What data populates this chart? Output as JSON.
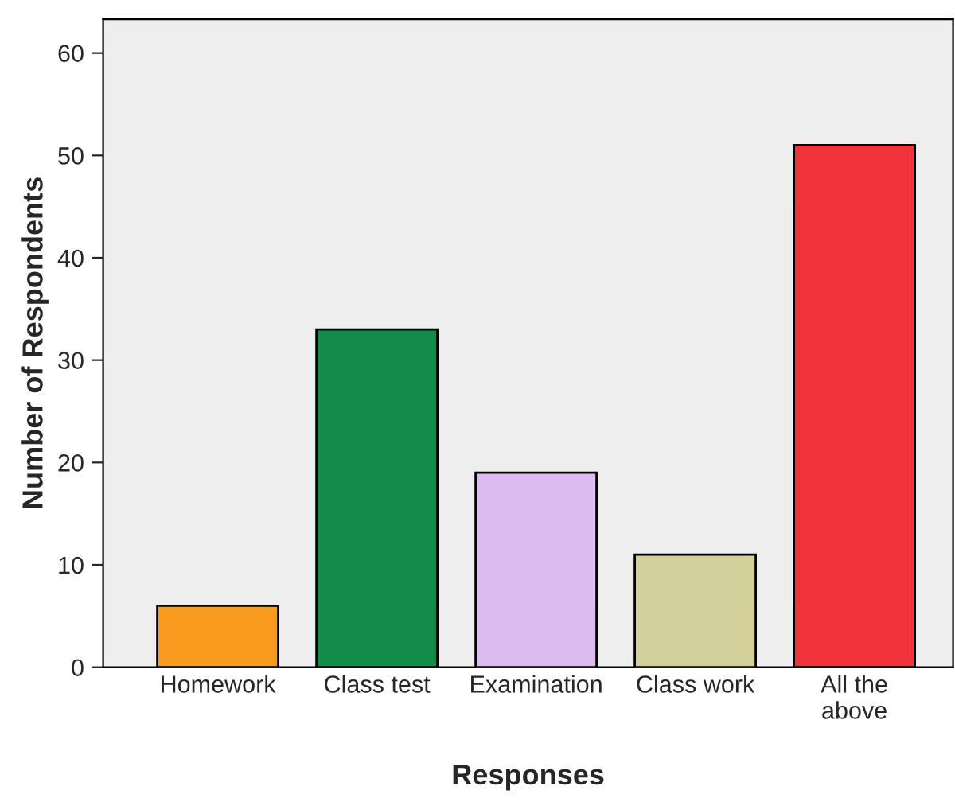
{
  "chart_data": {
    "type": "bar",
    "xlabel": "Responses",
    "ylabel": "Number of Respondents",
    "categories": [
      "Homework",
      "Class test",
      "Examination",
      "Class work",
      "All the\nabove"
    ],
    "values": [
      6,
      33,
      19,
      11,
      51
    ],
    "colors": [
      "#f79a1e",
      "#138c4a",
      "#dcbcf0",
      "#d4d09c",
      "#f0323a"
    ],
    "ylim": [
      0,
      63.3
    ],
    "yticks": [
      0,
      10,
      20,
      30,
      40,
      50,
      60
    ],
    "grid": false
  }
}
